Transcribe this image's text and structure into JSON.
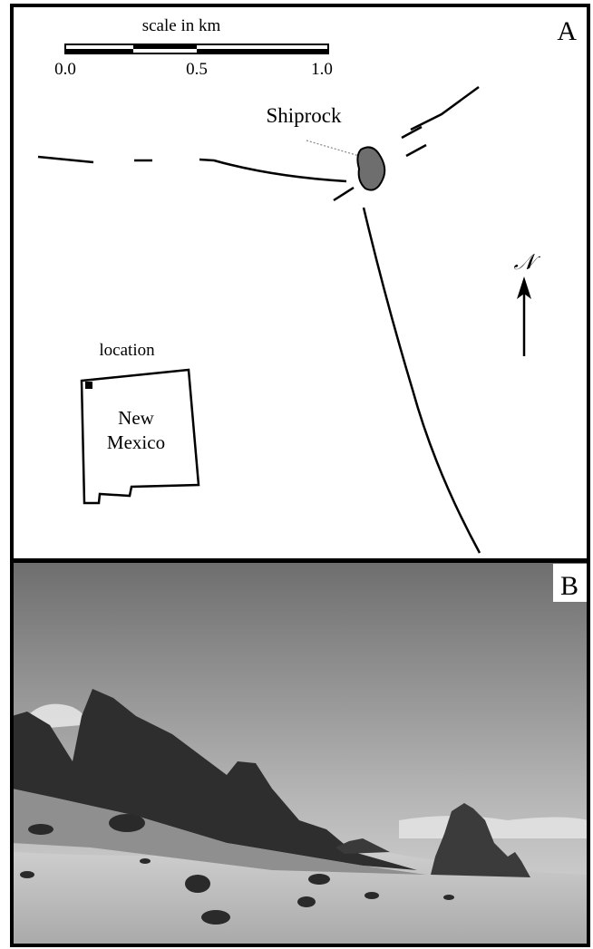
{
  "panel_a": {
    "label": "A",
    "scale": {
      "title": "scale in km",
      "ticks": [
        "0.0",
        "0.5",
        "1.0"
      ]
    },
    "feature": "Shiprock",
    "north": "𝒩",
    "inset": {
      "title": "location",
      "state": [
        "New",
        "Mexico"
      ]
    }
  },
  "panel_b": {
    "label": "B"
  }
}
